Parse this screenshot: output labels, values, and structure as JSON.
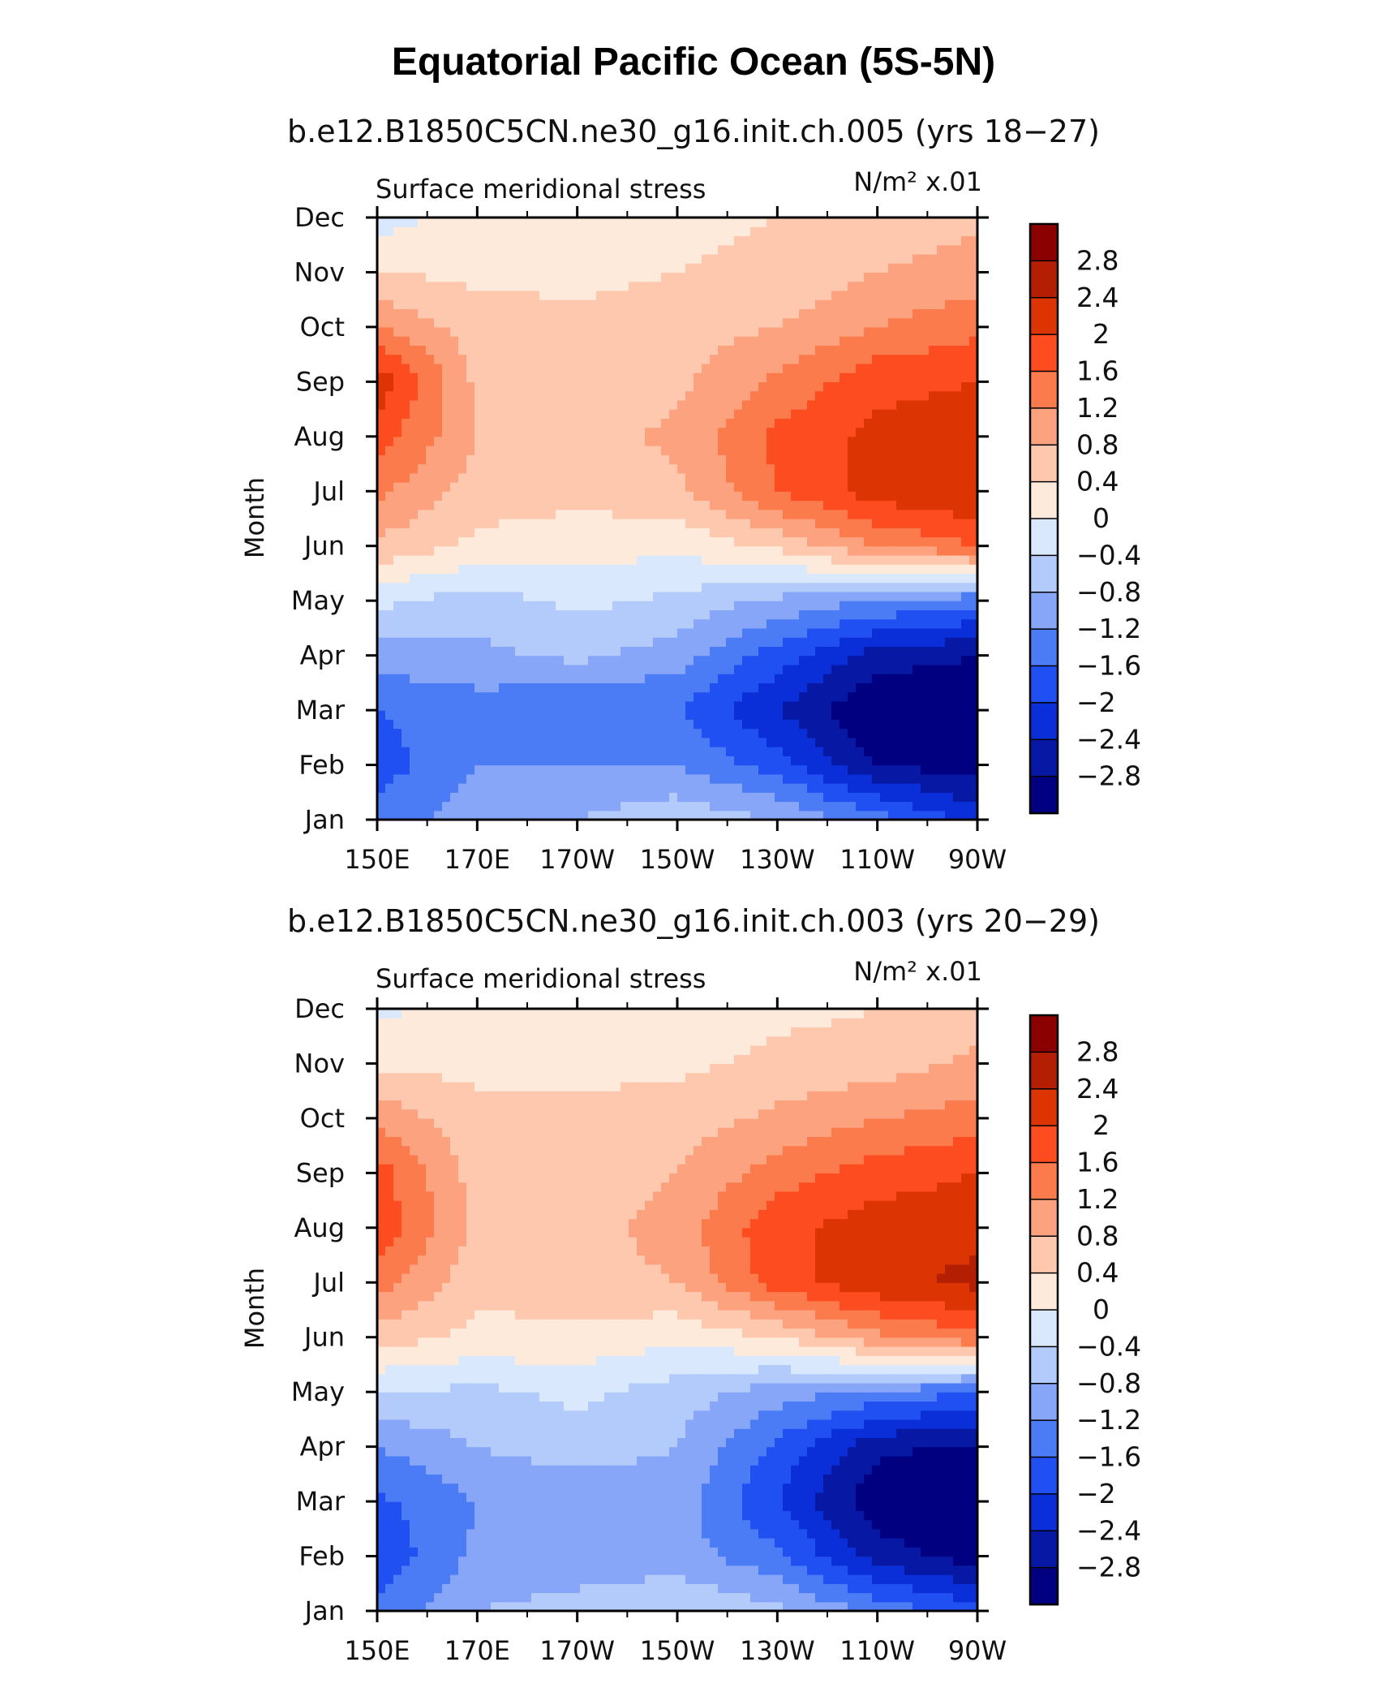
{
  "title": "Equatorial Pacific Ocean (5S-5N)",
  "chart_data": [
    {
      "type": "heatmap",
      "subtitle": "b.e12.B1850C5CN.ne30_g16.init.ch.005 (yrs 18−27)",
      "variable": "Surface meridional stress",
      "units": "N/m² x.01",
      "ylabel": "Month",
      "x_ticks": [
        "150E",
        "170E",
        "170W",
        "150W",
        "130W",
        "110W",
        "90W"
      ],
      "y_ticks": [
        "Jan",
        "Feb",
        "Mar",
        "Apr",
        "May",
        "Jun",
        "Jul",
        "Aug",
        "Sep",
        "Oct",
        "Nov",
        "Dec"
      ],
      "colorbar_levels": [
        "2.8",
        "2.4",
        "2",
        "1.6",
        "1.2",
        "0.8",
        "0.4",
        "0",
        "−0.4",
        "−0.8",
        "−1.2",
        "−1.6",
        "−2",
        "−2.4",
        "−2.8"
      ],
      "colorbar_colors": [
        "#8b0000",
        "#b41e02",
        "#dc3503",
        "#fd4c1f",
        "#fb7b4d",
        "#fca27f",
        "#fdc8ad",
        "#feeadb",
        "#d9e8fc",
        "#b3cbfa",
        "#87a6f8",
        "#4c7cf5",
        "#2150f2",
        "#0a2fd9",
        "#0718a4",
        "#000080"
      ],
      "grid": {
        "lon": [
          150,
          170,
          190,
          210,
          230,
          250,
          270
        ],
        "months": [
          "Jan",
          "Feb",
          "Mar",
          "Apr",
          "May",
          "Jun",
          "Jul",
          "Aug",
          "Sep",
          "Oct",
          "Nov",
          "Dec"
        ],
        "values": [
          [
            -1.4,
            -1.0,
            -0.8,
            -0.5,
            -0.8,
            -1.4,
            -2.2
          ],
          [
            -1.8,
            -1.2,
            -1.2,
            -1.2,
            -1.8,
            -2.8,
            -3.0
          ],
          [
            -1.6,
            -1.4,
            -1.6,
            -1.6,
            -2.4,
            -3.2,
            -3.2
          ],
          [
            -1.0,
            -0.9,
            -0.7,
            -1.0,
            -1.8,
            -2.6,
            -2.8
          ],
          [
            -0.3,
            -0.6,
            -0.3,
            -0.5,
            -0.9,
            -1.2,
            -1.5
          ],
          [
            0.7,
            0.3,
            0.2,
            0.1,
            0.5,
            1.2,
            1.6
          ],
          [
            1.3,
            0.6,
            0.5,
            0.7,
            1.6,
            2.2,
            2.4
          ],
          [
            1.8,
            0.8,
            0.6,
            0.9,
            1.7,
            2.1,
            2.2
          ],
          [
            2.3,
            0.7,
            0.6,
            0.7,
            1.3,
            1.9,
            2.0
          ],
          [
            1.2,
            0.6,
            0.5,
            0.6,
            0.8,
            1.2,
            1.5
          ],
          [
            0.4,
            0.3,
            0.3,
            0.4,
            0.5,
            0.8,
            1.0
          ],
          [
            -0.2,
            0.2,
            0.2,
            0.3,
            0.4,
            0.5,
            0.7
          ]
        ]
      }
    },
    {
      "type": "heatmap",
      "subtitle": "b.e12.B1850C5CN.ne30_g16.init.ch.003 (yrs 20−29)",
      "variable": "Surface meridional stress",
      "units": "N/m² x.01",
      "ylabel": "Month",
      "x_ticks": [
        "150E",
        "170E",
        "170W",
        "150W",
        "130W",
        "110W",
        "90W"
      ],
      "y_ticks": [
        "Jan",
        "Feb",
        "Mar",
        "Apr",
        "May",
        "Jun",
        "Jul",
        "Aug",
        "Sep",
        "Oct",
        "Nov",
        "Dec"
      ],
      "colorbar_levels": [
        "2.8",
        "2.4",
        "2",
        "1.6",
        "1.2",
        "0.8",
        "0.4",
        "0",
        "−0.4",
        "−0.8",
        "−1.2",
        "−1.6",
        "−2",
        "−2.4",
        "−2.8"
      ],
      "colorbar_colors": [
        "#8b0000",
        "#b41e02",
        "#dc3503",
        "#fd4c1f",
        "#fb7b4d",
        "#fca27f",
        "#fdc8ad",
        "#feeadb",
        "#d9e8fc",
        "#b3cbfa",
        "#87a6f8",
        "#4c7cf5",
        "#2150f2",
        "#0a2fd9",
        "#0718a4",
        "#000080"
      ],
      "grid": {
        "lon": [
          150,
          170,
          190,
          210,
          230,
          250,
          270
        ],
        "months": [
          "Jan",
          "Feb",
          "Mar",
          "Apr",
          "May",
          "Jun",
          "Jul",
          "Aug",
          "Sep",
          "Oct",
          "Nov",
          "Dec"
        ],
        "values": [
          [
            -1.5,
            -0.8,
            -0.6,
            -0.4,
            -0.7,
            -1.3,
            -1.8
          ],
          [
            -1.9,
            -1.1,
            -1.1,
            -1.0,
            -1.5,
            -2.6,
            -3.0
          ],
          [
            -1.7,
            -1.2,
            -1.1,
            -1.0,
            -2.0,
            -3.1,
            -3.2
          ],
          [
            -1.2,
            -0.8,
            -0.6,
            -0.8,
            -1.7,
            -2.7,
            -2.9
          ],
          [
            -0.4,
            -0.5,
            -0.3,
            -0.6,
            -1.0,
            -1.3,
            -1.6
          ],
          [
            0.6,
            0.3,
            0.3,
            0.1,
            0.4,
            1.1,
            1.5
          ],
          [
            1.4,
            0.5,
            0.6,
            0.8,
            1.8,
            2.3,
            2.5
          ],
          [
            1.9,
            0.7,
            0.6,
            1.0,
            1.9,
            2.2,
            2.3
          ],
          [
            1.8,
            0.6,
            0.5,
            0.8,
            1.4,
            1.8,
            2.0
          ],
          [
            1.1,
            0.5,
            0.5,
            0.6,
            0.9,
            1.2,
            1.4
          ],
          [
            0.3,
            0.3,
            0.3,
            0.3,
            0.5,
            0.6,
            0.9
          ],
          [
            -0.1,
            0.2,
            0.2,
            0.2,
            0.3,
            0.4,
            0.6
          ]
        ]
      }
    }
  ]
}
